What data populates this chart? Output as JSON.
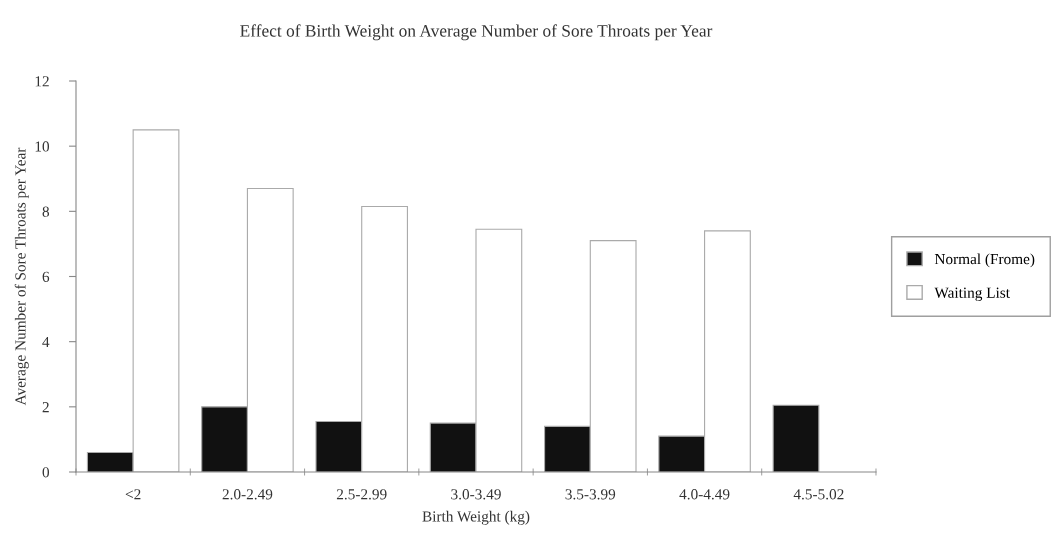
{
  "chart_data": {
    "type": "bar",
    "title": "Effect of Birth Weight on Average Number of Sore Throats per Year",
    "xlabel": "Birth Weight (kg)",
    "ylabel": "Average Number of Sore Throats per Year",
    "categories": [
      "<2",
      "2.0-2.49",
      "2.5-2.99",
      "3.0-3.49",
      "3.5-3.99",
      "4.0-4.49",
      "4.5-5.02"
    ],
    "series": [
      {
        "name": "Normal (Frome)",
        "color": "#111111",
        "values": [
          0.6,
          2.0,
          1.55,
          1.5,
          1.4,
          1.1,
          2.05
        ]
      },
      {
        "name": "Waiting List",
        "color": "#ffffff",
        "values": [
          10.5,
          8.7,
          8.15,
          7.45,
          7.1,
          7.4,
          null
        ]
      }
    ],
    "ylim": [
      0,
      12
    ],
    "yticks": [
      0,
      2,
      4,
      6,
      8,
      10,
      12
    ],
    "grid": false,
    "legend": "right"
  }
}
